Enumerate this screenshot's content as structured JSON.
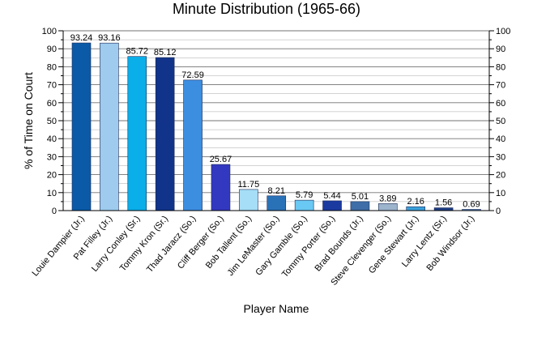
{
  "chart_data": {
    "type": "bar",
    "title": "Minute Distribution (1965-66)",
    "xlabel": "Player Name",
    "ylabel": "% of Time on Court",
    "ylim": [
      0,
      100
    ],
    "yticks": [
      0,
      10,
      20,
      30,
      40,
      50,
      60,
      70,
      80,
      90,
      100
    ],
    "right_axis": true,
    "grid": true,
    "categories": [
      "Louie Dampier (Jr.)",
      "Pat Filley (Jr.)",
      "Larry Conley (Sr.)",
      "Tommy Kron (Sr.)",
      "Thad Jaracz (So.)",
      "Cliff Berger (So.)",
      "Bob Tallent (So.)",
      "Jim LeMaster (So.)",
      "Gary Gamble (So.)",
      "Tommy Porter (So.)",
      "Brad Bounds (Jr.)",
      "Steve Clevenger (So.)",
      "Gene Stewart (Jr.)",
      "Larry Lentz (Sr.)",
      "Bob Windsor (Jr.)"
    ],
    "values": [
      93.24,
      93.16,
      85.72,
      85.12,
      72.59,
      25.67,
      11.75,
      8.21,
      5.79,
      5.44,
      5.01,
      3.89,
      2.16,
      1.56,
      0.69
    ],
    "value_labels": [
      "93.24",
      "93.16",
      "85.72",
      "85.12",
      "72.59",
      "25.67",
      "11.75",
      "8.21",
      "5.79",
      "5.44",
      "5.01",
      "3.89",
      "2.16",
      "1.56",
      "0.69"
    ],
    "colors": [
      "#0a5aa8",
      "#9ecbee",
      "#0aaee8",
      "#11338a",
      "#3c8ee0",
      "#3338c0",
      "#a6ddf7",
      "#2a72b8",
      "#6ac8f4",
      "#1a3aa0",
      "#3f6ea8",
      "#9cb4cc",
      "#3aa0dc",
      "#1e3f86",
      "#5a8ed0"
    ]
  }
}
